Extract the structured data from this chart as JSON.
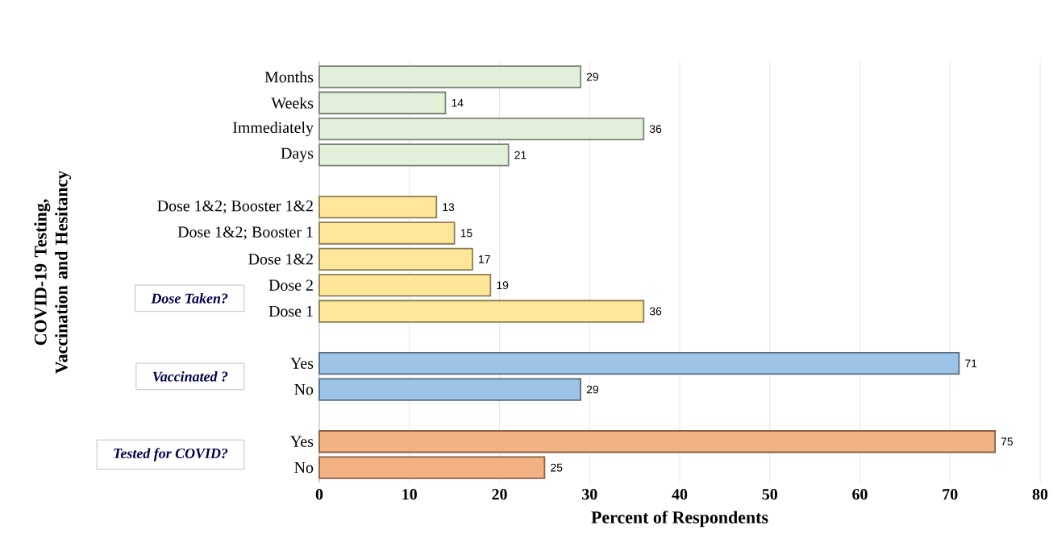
{
  "chart_data": {
    "type": "bar",
    "orientation": "horizontal",
    "xlabel": "Percent of Respondents",
    "ylabel": "COVID-19 Testing, Vaccination and Hesitancy",
    "categories": [
      "Months",
      "Weeks",
      "Immediately",
      "Days",
      null,
      "Dose 1&2; Booster 1&2",
      "Dose 1&2; Booster 1",
      "Dose 1&2",
      "Dose 2",
      "Dose 1",
      null,
      "Yes",
      "No",
      null,
      "Yes",
      "No"
    ],
    "values": [
      29,
      14,
      36,
      21,
      null,
      13,
      15,
      17,
      19,
      36,
      null,
      71,
      29,
      null,
      75,
      25
    ],
    "colors": [
      "#e2f0d9",
      "#e2f0d9",
      "#e2f0d9",
      "#e2f0d9",
      null,
      "#ffe699",
      "#ffe699",
      "#ffe699",
      "#ffe699",
      "#ffe699",
      null,
      "#9dc3e6",
      "#9dc3e6",
      null,
      "#f4b183",
      "#f4b183"
    ],
    "data_labels": true,
    "xlim": [
      0,
      80
    ],
    "xticks": [
      0,
      10,
      20,
      30,
      40,
      50,
      60,
      70,
      80
    ],
    "grid": "x",
    "annotations": [
      "Dose Taken?",
      "Vaccinated ?",
      "Tested for COVID?"
    ]
  }
}
